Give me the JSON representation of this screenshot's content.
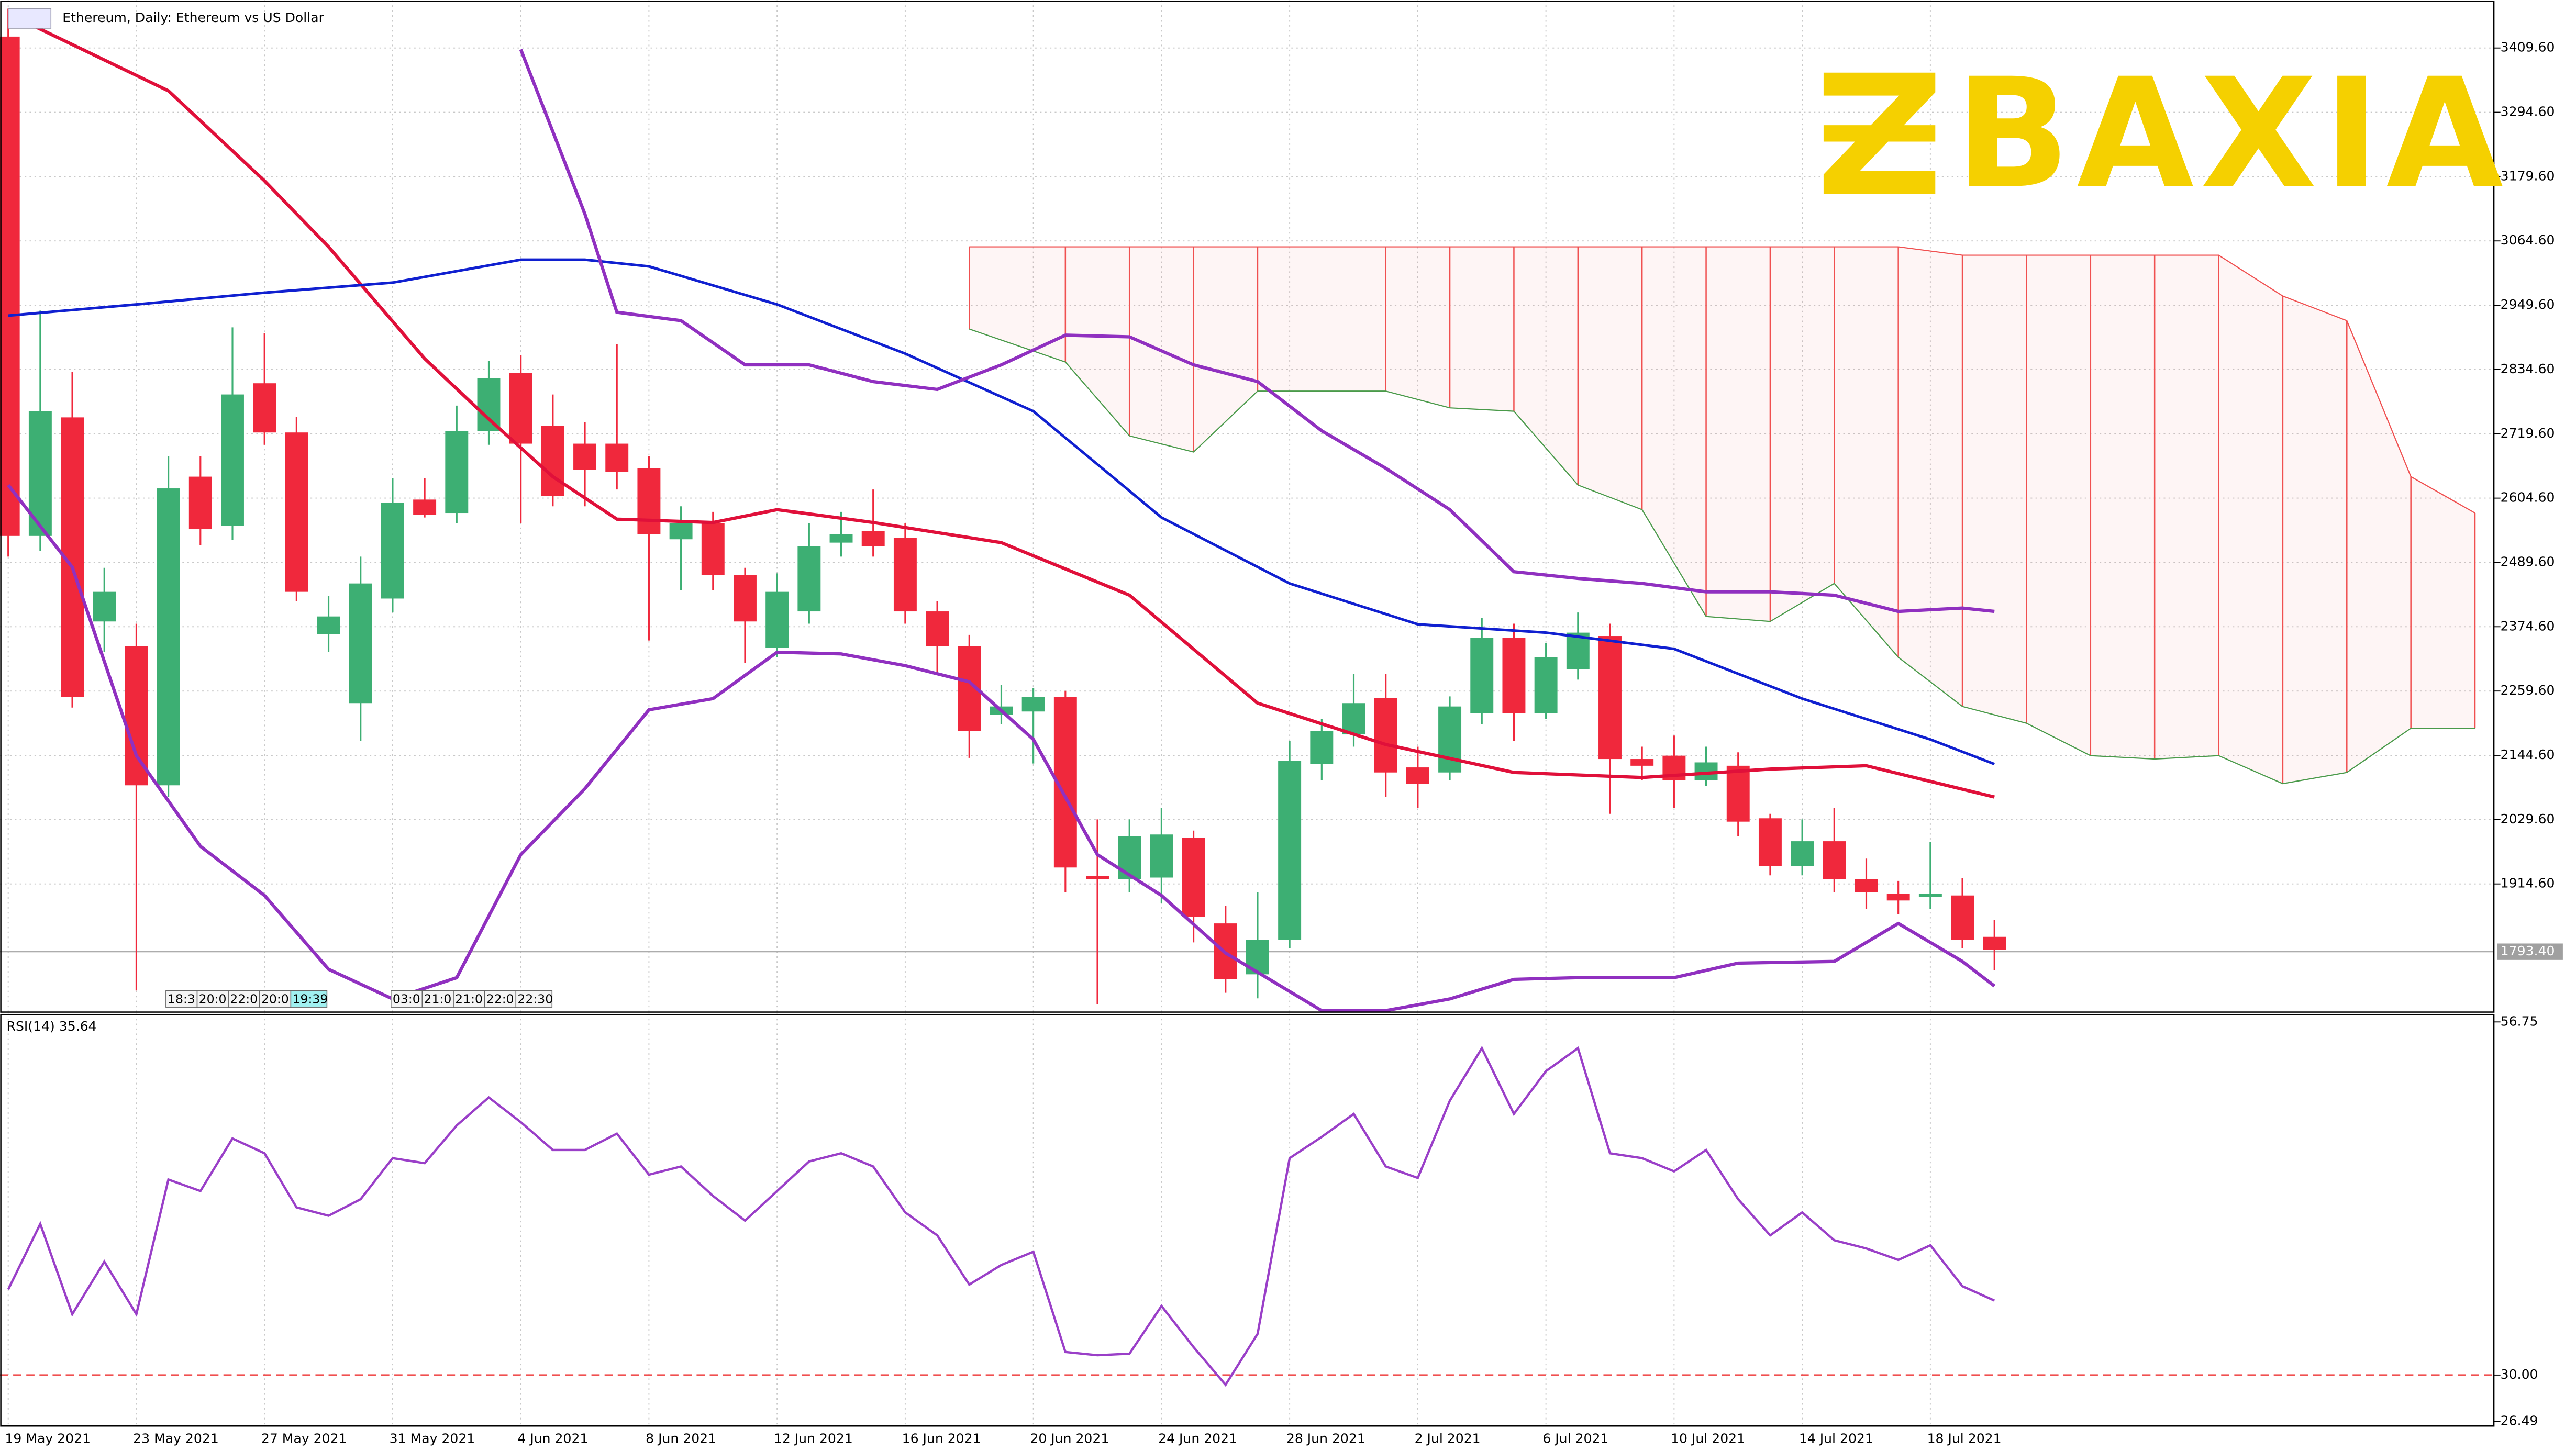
{
  "chart_data": {
    "type": "candlestick",
    "title": "Ethereum, Daily:  Ethereum vs US Dollar",
    "brand": "BAXIA",
    "categories": [
      "19 May 2021",
      null,
      null,
      null,
      "23 May 2021",
      null,
      null,
      null,
      "27 May 2021",
      null,
      null,
      null,
      "31 May 2021",
      null,
      null,
      null,
      "4 Jun 2021",
      null,
      null,
      null,
      "8 Jun 2021",
      null,
      null,
      null,
      "12 Jun 2021",
      null,
      null,
      null,
      "16 Jun 2021",
      null,
      null,
      null,
      "20 Jun 2021",
      null,
      null,
      null,
      "24 Jun 2021",
      null,
      null,
      null,
      "28 Jun 2021",
      null,
      null,
      null,
      "2 Jul 2021",
      null,
      null,
      null,
      "6 Jul 2021",
      null,
      null,
      null,
      "10 Jul 2021",
      null,
      null,
      null,
      "14 Jul 2021",
      null,
      null,
      null,
      "18 Jul 2021",
      null,
      null
    ],
    "open": [
      3430,
      2537,
      2749,
      2384,
      2340,
      2091,
      2643,
      2555,
      2810,
      2722,
      2361,
      2238,
      2425,
      2602,
      2578,
      2725,
      2828,
      2734,
      2702,
      2702,
      2658,
      2531,
      2560,
      2467,
      2337,
      2402,
      2525,
      2546,
      2534,
      2402,
      2340,
      2217,
      2223,
      2249,
      1929,
      1923,
      1926,
      1997,
      1844,
      1753,
      1815,
      2129,
      2182,
      2247,
      2123,
      2114,
      2220,
      2355,
      2220,
      2299,
      2358,
      2138,
      2144,
      2100,
      2126,
      2032,
      1947,
      1991,
      1923,
      1897,
      1891,
      1894,
      1820
    ],
    "high": [
      3480,
      2940,
      2830,
      2480,
      2380,
      2680,
      2680,
      2910,
      2900,
      2750,
      2430,
      2500,
      2640,
      2640,
      2770,
      2850,
      2860,
      2790,
      2740,
      2880,
      2680,
      2590,
      2580,
      2480,
      2470,
      2560,
      2580,
      2620,
      2560,
      2420,
      2360,
      2270,
      2265,
      2260,
      2030,
      2030,
      2050,
      2010,
      1875,
      1900,
      2170,
      2210,
      2290,
      2290,
      2160,
      2250,
      2390,
      2380,
      2345,
      2400,
      2380,
      2160,
      2180,
      2160,
      2150,
      2040,
      2030,
      2050,
      1960,
      1920,
      1990,
      1925,
      1850
    ],
    "low": [
      2500,
      2510,
      2230,
      2330,
      1724,
      2070,
      2520,
      2530,
      2700,
      2420,
      2330,
      2170,
      2400,
      2570,
      2560,
      2700,
      2560,
      2590,
      2590,
      2620,
      2350,
      2440,
      2440,
      2310,
      2320,
      2380,
      2500,
      2500,
      2380,
      2290,
      2140,
      2200,
      2130,
      1900,
      1700,
      1900,
      1880,
      1810,
      1720,
      1710,
      1800,
      2100,
      2160,
      2070,
      2050,
      2100,
      2200,
      2170,
      2210,
      2280,
      2040,
      2100,
      2050,
      2090,
      2000,
      1930,
      1930,
      1900,
      1870,
      1860,
      1870,
      1800,
      1760
    ],
    "close": [
      2537,
      2760,
      2249,
      2437,
      2091,
      2622,
      2549,
      2790,
      2722,
      2437,
      2393,
      2452,
      2596,
      2575,
      2725,
      2819,
      2702,
      2608,
      2655,
      2652,
      2540,
      2560,
      2467,
      2384,
      2437,
      2519,
      2540,
      2519,
      2402,
      2340,
      2188,
      2232,
      2249,
      1944,
      1923,
      2000,
      2003,
      1856,
      1744,
      1815,
      2135,
      2188,
      2238,
      2114,
      2094,
      2232,
      2355,
      2220,
      2320,
      2364,
      2138,
      2126,
      2100,
      2132,
      2026,
      1947,
      1991,
      1923,
      1900,
      1885,
      1897,
      1815,
      1797
    ],
    "up_color": "#3daf73",
    "down_color": "#f0283c",
    "ylim": [
      1685.4,
      3494.8
    ],
    "yticks": [
      {
        "value": 3409.6,
        "label": "3409.60"
      },
      {
        "value": 3294.6,
        "label": "3294.60"
      },
      {
        "value": 3179.6,
        "label": "3179.60"
      },
      {
        "value": 3064.6,
        "label": "3064.60"
      },
      {
        "value": 2949.6,
        "label": "2949.60"
      },
      {
        "value": 2834.6,
        "label": "2834.60"
      },
      {
        "value": 2719.6,
        "label": "2719.60"
      },
      {
        "value": 2604.6,
        "label": "2604.60"
      },
      {
        "value": 2489.6,
        "label": "2489.60"
      },
      {
        "value": 2374.6,
        "label": "2374.60"
      },
      {
        "value": 2259.6,
        "label": "2259.60"
      },
      {
        "value": 2144.6,
        "label": "2144.60"
      },
      {
        "value": 2029.6,
        "label": "2029.60"
      },
      {
        "value": 1914.6,
        "label": "1914.60"
      }
    ],
    "current_price": {
      "value": 1793.4,
      "label": "1793.40"
    },
    "grid": true,
    "lines": [
      {
        "color": "#e0103a",
        "width": 2,
        "x": [
          0,
          5,
          8,
          10,
          13,
          15,
          17,
          19,
          22,
          24,
          27,
          31,
          35,
          39,
          43,
          47,
          51,
          55,
          58,
          62
        ],
        "values": [
          3471,
          3333,
          3172,
          3054,
          2854,
          2746,
          2643,
          2567,
          2561,
          2584,
          2561,
          2525,
          2431,
          2238,
          2164,
          2114,
          2105,
          2120,
          2126,
          2070
        ]
      },
      {
        "color": "#1020d0",
        "width": 1.6,
        "x": [
          0,
          4,
          8,
          12,
          16,
          18,
          20,
          24,
          28,
          32,
          36,
          40,
          44,
          48,
          52,
          56,
          60,
          62
        ],
        "values": [
          2931,
          2951,
          2972,
          2990,
          3031,
          3031,
          3019,
          2951,
          2863,
          2760,
          2570,
          2452,
          2379,
          2364,
          2335,
          2246,
          2173,
          2129
        ]
      },
      {
        "color": "#9030c0",
        "width": 2,
        "x": [
          16,
          18,
          19,
          21,
          23,
          25,
          27,
          29,
          31,
          33,
          35,
          37,
          39,
          41,
          43,
          45,
          47,
          49,
          51,
          53,
          55,
          57,
          59,
          61,
          62
        ],
        "values": [
          3407,
          3113,
          2937,
          2922,
          2843,
          2843,
          2813,
          2799,
          2843,
          2896,
          2893,
          2843,
          2813,
          2725,
          2658,
          2584,
          2473,
          2461,
          2452,
          2437,
          2437,
          2431,
          2402,
          2408,
          2402
        ]
      },
      {
        "color": "#9030c0",
        "width": 2,
        "x": [
          0,
          2,
          4,
          6,
          8,
          10,
          12,
          14,
          16,
          18,
          20,
          22,
          24,
          26,
          28,
          30,
          32,
          34,
          36,
          38,
          41,
          43,
          45,
          47,
          49,
          52,
          54,
          57,
          59,
          61,
          62
        ],
        "values": [
          2628,
          2481,
          2144,
          1982,
          1894,
          1762,
          1709,
          1747,
          1967,
          2085,
          2226,
          2246,
          2329,
          2326,
          2305,
          2276,
          2173,
          1967,
          1894,
          1791,
          1688,
          1688,
          1709,
          1744,
          1747,
          1747,
          1773,
          1776,
          1844,
          1776,
          1732
        ]
      }
    ],
    "cloud": {
      "color": "#f05050",
      "edge_color": "#4a9a4a",
      "x": [
        30,
        33,
        35,
        37,
        39,
        43,
        45,
        47,
        49,
        51,
        53,
        55,
        57,
        59,
        61,
        63,
        65,
        67,
        69,
        71,
        73,
        75,
        77
      ],
      "span_a": [
        2907,
        2848,
        2716,
        2687,
        2796,
        2796,
        2766,
        2760,
        2628,
        2584,
        2393,
        2384,
        2452,
        2320,
        2232,
        2202,
        2144,
        2138,
        2144,
        2094,
        2114,
        2193,
        2193
      ],
      "span_b": [
        3054,
        3054,
        3054,
        3054,
        3054,
        3054,
        3054,
        3054,
        3054,
        3054,
        3054,
        3054,
        3054,
        3054,
        3039,
        3039,
        3039,
        3039,
        3039,
        2966,
        2922,
        2643,
        2578
      ]
    },
    "time_labels": [
      "18:3",
      "20:0",
      "22:0",
      "20:0",
      "19:39",
      "03:0",
      "21:0",
      "21:0",
      "22:0",
      "22:30"
    ],
    "rsi": {
      "title": "RSI(14) 35.64",
      "color": "#9a3fc8",
      "level_color": "#f05050",
      "values": [
        36.48,
        41.45,
        34.61,
        38.59,
        34.61,
        44.81,
        43.94,
        47.92,
        46.8,
        42.7,
        42.07,
        43.32,
        46.43,
        46.05,
        48.91,
        51.03,
        49.16,
        47.05,
        47.05,
        48.29,
        45.18,
        45.8,
        43.57,
        41.7,
        43.94,
        46.18,
        46.8,
        45.8,
        42.32,
        40.58,
        36.85,
        38.34,
        39.34,
        31.75,
        31.5,
        31.62,
        35.23,
        32.12,
        29.26,
        33.12,
        46.43,
        48.04,
        49.78,
        45.8,
        44.93,
        50.78,
        54.76,
        49.78,
        53.02,
        54.76,
        46.8,
        46.43,
        45.43,
        47.05,
        43.32,
        40.58,
        42.32,
        40.21,
        39.59,
        38.72,
        39.83,
        36.73,
        35.64
      ],
      "ylim": [
        26.14,
        57.37
      ],
      "yticks": [
        {
          "value": 56.75,
          "label": "56.75"
        },
        {
          "value": 30,
          "label": "30.00"
        },
        {
          "value": 26.49,
          "label": "26.49"
        }
      ],
      "level": 30
    }
  }
}
